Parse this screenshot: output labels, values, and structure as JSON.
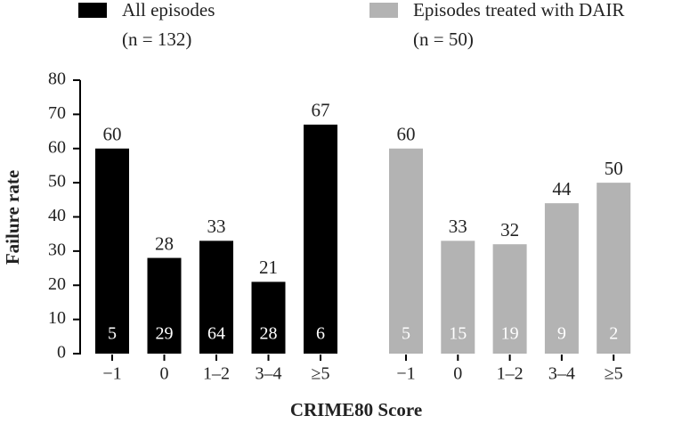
{
  "chart_data": {
    "type": "bar",
    "x_label": "CRIME80 Score",
    "y_label": "Failure rate",
    "ylim": [
      0,
      80
    ],
    "yticks": [
      0,
      10,
      20,
      30,
      40,
      50,
      60,
      70,
      80
    ],
    "series": [
      {
        "name": "All episodes",
        "n_label": "(n = 132)",
        "color": "#000000",
        "categories": [
          "−1",
          "0",
          "1–2",
          "3–4",
          "≥5"
        ],
        "values": [
          60,
          28,
          33,
          21,
          67
        ],
        "counts": [
          5,
          29,
          64,
          28,
          6
        ]
      },
      {
        "name": "Episodes treated with DAIR",
        "n_label": "(n = 50)",
        "color": "#b3b3b3",
        "categories": [
          "−1",
          "0",
          "1–2",
          "3–4",
          "≥5"
        ],
        "values": [
          60,
          33,
          32,
          44,
          50
        ],
        "counts": [
          5,
          15,
          19,
          9,
          2
        ]
      }
    ]
  }
}
